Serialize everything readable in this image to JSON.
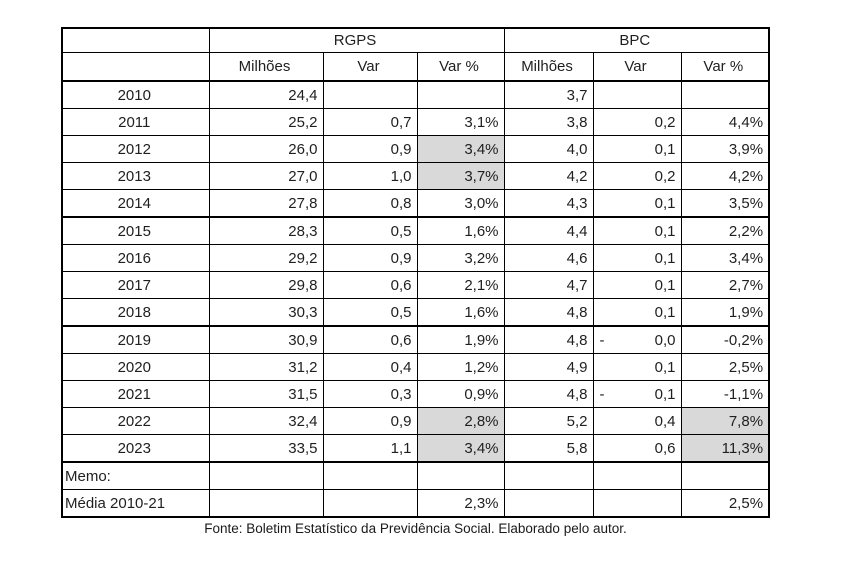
{
  "chart_data": {
    "type": "table",
    "title": "",
    "column_groups": [
      {
        "label": "RGPS",
        "span": 3
      },
      {
        "label": "BPC",
        "span": 3
      }
    ],
    "columns": [
      "Milhões",
      "Var",
      "Var %",
      "Milhões",
      "Var",
      "Var %"
    ],
    "rows": [
      {
        "label": "2010",
        "cells": [
          "24,4",
          "",
          "",
          "3,7",
          "",
          ""
        ]
      },
      {
        "label": "2011",
        "cells": [
          "25,2",
          "0,7",
          "3,1%",
          "3,8",
          "0,2",
          "4,4%"
        ]
      },
      {
        "label": "2012",
        "cells": [
          "26,0",
          "0,9",
          "3,4%",
          "4,0",
          "0,1",
          "3,9%"
        ],
        "hl": [
          2
        ]
      },
      {
        "label": "2013",
        "cells": [
          "27,0",
          "1,0",
          "3,7%",
          "4,2",
          "0,2",
          "4,2%"
        ],
        "hl": [
          2
        ]
      },
      {
        "label": "2014",
        "cells": [
          "27,8",
          "0,8",
          "3,0%",
          "4,3",
          "0,1",
          "3,5%"
        ]
      },
      {
        "label": "2015",
        "cells": [
          "28,3",
          "0,5",
          "1,6%",
          "4,4",
          "0,1",
          "2,2%"
        ]
      },
      {
        "label": "2016",
        "cells": [
          "29,2",
          "0,9",
          "3,2%",
          "4,6",
          "0,1",
          "3,4%"
        ]
      },
      {
        "label": "2017",
        "cells": [
          "29,8",
          "0,6",
          "2,1%",
          "4,7",
          "0,1",
          "2,7%"
        ]
      },
      {
        "label": "2018",
        "cells": [
          "30,3",
          "0,5",
          "1,6%",
          "4,8",
          "0,1",
          "1,9%"
        ]
      },
      {
        "label": "2019",
        "cells": [
          "30,9",
          "0,6",
          "1,9%",
          "4,8",
          "- 0,0",
          "-0,2%"
        ]
      },
      {
        "label": "2020",
        "cells": [
          "31,2",
          "0,4",
          "1,2%",
          "4,9",
          "0,1",
          "2,5%"
        ]
      },
      {
        "label": "2021",
        "cells": [
          "31,5",
          "0,3",
          "0,9%",
          "4,8",
          "- 0,1",
          "-1,1%"
        ]
      },
      {
        "label": "2022",
        "cells": [
          "32,4",
          "0,9",
          "2,8%",
          "5,2",
          "0,4",
          "7,8%"
        ],
        "hl": [
          2,
          5
        ]
      },
      {
        "label": "2023",
        "cells": [
          "33,5",
          "1,1",
          "3,4%",
          "5,8",
          "0,6",
          "11,3%"
        ],
        "hl": [
          2,
          5
        ]
      },
      {
        "label": "Memo:",
        "cells": [
          "",
          "",
          "",
          "",
          "",
          ""
        ],
        "memo": true
      },
      {
        "label": "Média 2010-21",
        "cells": [
          "",
          "",
          "2,3%",
          "",
          "",
          "2,5%"
        ],
        "memo": true
      }
    ],
    "source_note": "Fonte: Boletim Estatístico da Previdência Social. Elaborado pelo autor.",
    "layout_hints": {
      "highlight_bg": "#d9d9d9",
      "border_color": "#000000",
      "text_color": "#1f1f1f",
      "thick_separator_after": [
        "2014",
        "2018",
        "2023"
      ]
    }
  }
}
